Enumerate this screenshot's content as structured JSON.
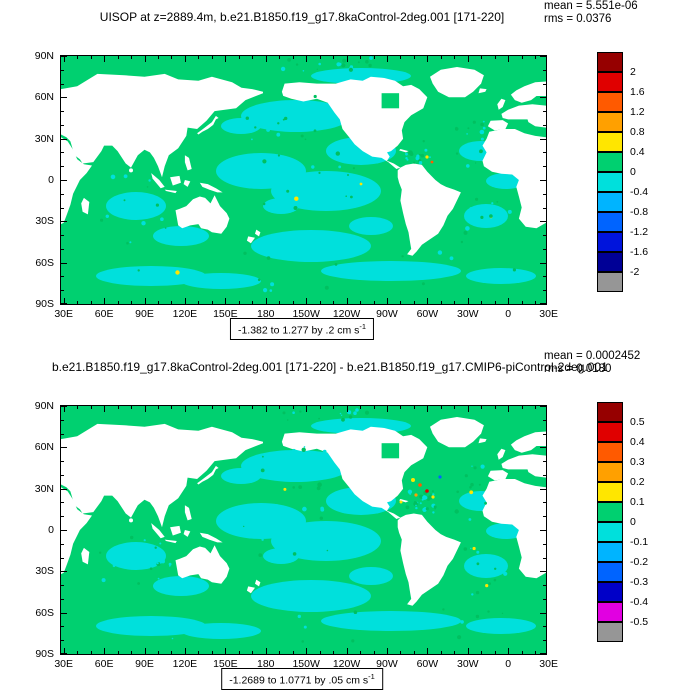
{
  "map_colors": {
    "ocean_positive_green": "#00d070",
    "ocean_negative_cyan": "#00e0dc",
    "land_mask": "#ffffff",
    "frame": "#000000"
  },
  "panels": [
    {
      "title": "UISOP at z=2889.4m, b.e21.B1850.f19_g17.8kaControl-2deg.001 [171-220]",
      "mean_label": "mean = 5.551e-06",
      "rms_label": "rms = 0.0376",
      "range_label": "-1.382 to 1.277 by .2 cm s",
      "range_exponent": "-1",
      "x_tick_labels": [
        "30E",
        "60E",
        "90E",
        "120E",
        "150E",
        "180",
        "150W",
        "120W",
        "90W",
        "60W",
        "30W",
        "0",
        "30E"
      ],
      "y_tick_labels": [
        "90N",
        "60N",
        "30N",
        "0",
        "30S",
        "60S",
        "90S"
      ],
      "colorbar": {
        "tick_labels": [
          "2",
          "1.6",
          "1.2",
          "0.8",
          "0.4",
          "0",
          "-0.4",
          "-0.8",
          "-1.2",
          "-1.6",
          "-2"
        ],
        "box_colors": [
          "#960000",
          "#e00000",
          "#ff5a00",
          "#ffa000",
          "#ffe600",
          "#00d070",
          "#00e0dc",
          "#00b4ff",
          "#0064ff",
          "#0014dc",
          "#000096",
          "#969696"
        ]
      }
    },
    {
      "title": "b.e21.B1850.f19_g17.8kaControl-2deg.001 [171-220] - b.e21.B1850.f19_g17.CMIP6-piControl-2deg.001",
      "mean_label": "mean = 0.0002452",
      "rms_label": "rms = 0.0180",
      "range_label": "-1.2689 to 1.0771 by .05 cm s",
      "range_exponent": "-1",
      "x_tick_labels": [
        "30E",
        "60E",
        "90E",
        "120E",
        "150E",
        "180",
        "150W",
        "120W",
        "90W",
        "60W",
        "30W",
        "0",
        "30E"
      ],
      "y_tick_labels": [
        "90N",
        "60N",
        "30N",
        "0",
        "30S",
        "60S",
        "90S"
      ],
      "colorbar": {
        "tick_labels": [
          "0.5",
          "0.4",
          "0.3",
          "0.2",
          "0.1",
          "0",
          "-0.1",
          "-0.2",
          "-0.3",
          "-0.4",
          "-0.5"
        ],
        "box_colors": [
          "#960000",
          "#e00000",
          "#ff5a00",
          "#ffa000",
          "#ffe600",
          "#00d070",
          "#00e0dc",
          "#00b4ff",
          "#0064ff",
          "#0000c8",
          "#e100e1",
          "#969696"
        ]
      }
    }
  ],
  "chart_data": [
    {
      "type": "heatmap",
      "subtype": "global lat-lon filled-contour map, land masked white",
      "variable": "UISOP",
      "title": "UISOP at z=2889.4m, b.e21.B1850.f19_g17.8kaControl-2deg.001 [171-220]",
      "stats": {
        "mean": 5.551e-06,
        "rms": 0.0376
      },
      "data_min": -1.382,
      "data_max": 1.277,
      "contour_interval": 0.2,
      "units": "cm s-1",
      "colorbar_levels_top_to_bottom": [
        2,
        1.6,
        1.2,
        0.8,
        0.4,
        0,
        -0.4,
        -0.8,
        -1.2,
        -1.6,
        -2
      ],
      "colorbar_colors_top_to_bottom": [
        "#960000",
        "#e00000",
        "#ff5a00",
        "#ffa000",
        "#ffe600",
        "#00d070",
        "#00e0dc",
        "#00b4ff",
        "#0064ff",
        "#0014dc",
        "#000096",
        "#969696"
      ],
      "x_axis": {
        "tick_labels": [
          "30E",
          "60E",
          "90E",
          "120E",
          "150E",
          "180",
          "150W",
          "120W",
          "90W",
          "60W",
          "30W",
          "0",
          "30E"
        ],
        "range": "30E eastward around the globe to 30E"
      },
      "y_axis": {
        "tick_labels": [
          "90N",
          "60N",
          "30N",
          "0",
          "30S",
          "60S",
          "90S"
        ],
        "range": "90N to 90S"
      },
      "legend_position": "right labelbar",
      "field_summary": "ocean mostly in 0 to 0.4 band (green) with large patches in -0.4 to 0 band (cyan); tiny warm-color specks near 90W tropics"
    },
    {
      "type": "heatmap",
      "subtype": "global lat-lon filled-contour difference map, land masked white",
      "variable": "UISOP difference",
      "title": "b.e21.B1850.f19_g17.8kaControl-2deg.001 [171-220] - b.e21.B1850.f19_g17.CMIP6-piControl-2deg.001",
      "stats": {
        "mean": 0.0002452,
        "rms": 0.018
      },
      "data_min": -1.2689,
      "data_max": 1.0771,
      "contour_interval": 0.05,
      "units": "cm s-1",
      "colorbar_levels_top_to_bottom": [
        0.5,
        0.4,
        0.3,
        0.2,
        0.1,
        0,
        -0.1,
        -0.2,
        -0.3,
        -0.4,
        -0.5
      ],
      "colorbar_colors_top_to_bottom": [
        "#960000",
        "#e00000",
        "#ff5a00",
        "#ffa000",
        "#ffe600",
        "#00d070",
        "#00e0dc",
        "#00b4ff",
        "#0064ff",
        "#0000c8",
        "#e100e1",
        "#969696"
      ],
      "x_axis": {
        "tick_labels": [
          "30E",
          "60E",
          "90E",
          "120E",
          "150E",
          "180",
          "150W",
          "120W",
          "90W",
          "60W",
          "30W",
          "0",
          "30E"
        ],
        "range": "30E eastward around the globe to 30E"
      },
      "y_axis": {
        "tick_labels": [
          "90N",
          "60N",
          "30N",
          "0",
          "30S",
          "60S",
          "90S"
        ],
        "range": "90N to 90S"
      },
      "legend_position": "right labelbar",
      "field_summary": "difference mostly between -0.1 and 0.1 (green/cyan); cluster of colored specks near western Atlantic / Caribbean around 60W-75W"
    }
  ]
}
